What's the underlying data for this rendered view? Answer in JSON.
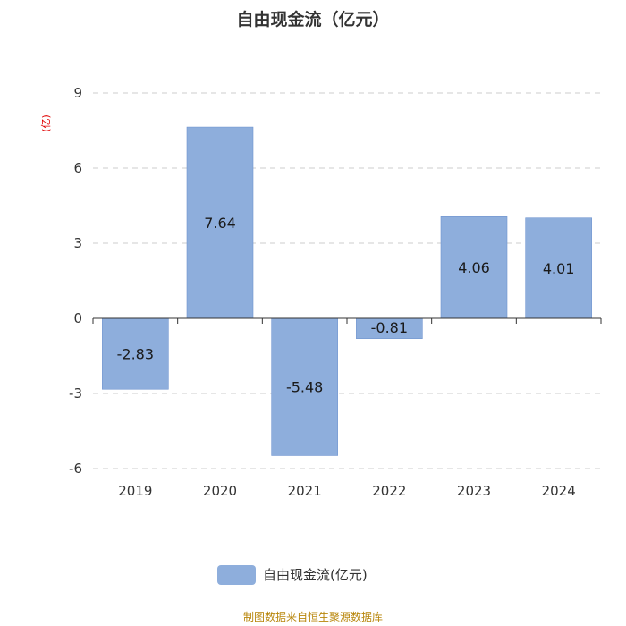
{
  "chart_data": {
    "type": "bar",
    "title": "自由现金流（亿元）",
    "ylabel": "(亿)",
    "categories": [
      "2019",
      "2020",
      "2021",
      "2022",
      "2023",
      "2024"
    ],
    "series": [
      {
        "name": "自由现金流(亿元)",
        "values": [
          -2.83,
          7.64,
          -5.48,
          -0.81,
          4.06,
          4.01
        ]
      }
    ],
    "ylim": [
      -6,
      9
    ],
    "yticks": [
      "9",
      "6",
      "3",
      "0",
      "-3",
      "-6"
    ],
    "ytick_values": [
      9,
      6,
      3,
      0,
      -3,
      -6
    ],
    "grid": true,
    "legend_position": "bottom",
    "bar_color": "#8eaedc",
    "bar_border_color": "#6f94cf"
  },
  "source_text": "制图数据来自恒生聚源数据库"
}
